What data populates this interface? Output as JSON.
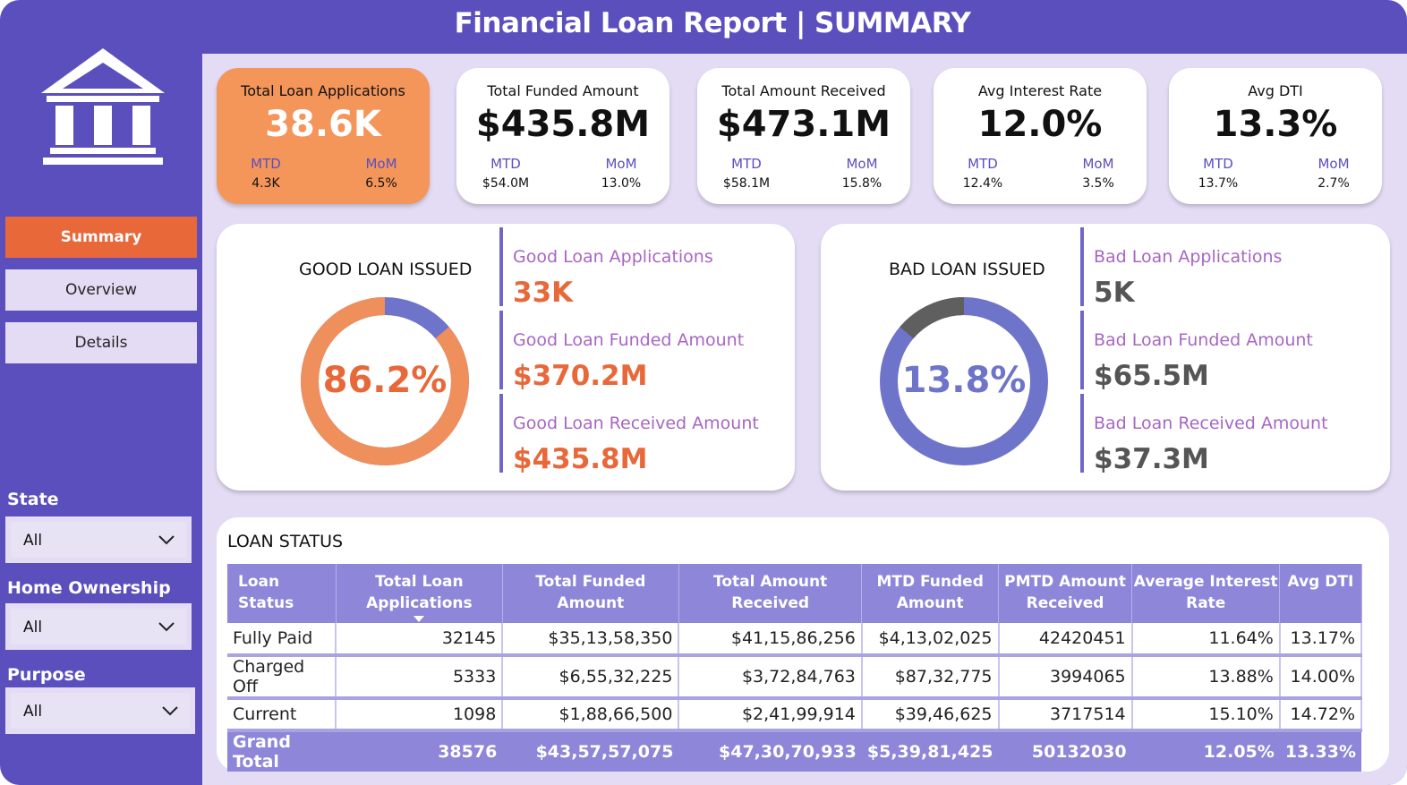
{
  "header": {
    "title": "Financial Loan Report | SUMMARY"
  },
  "sidebar": {
    "nav": [
      {
        "label": "Summary",
        "active": true
      },
      {
        "label": "Overview",
        "active": false
      },
      {
        "label": "Details",
        "active": false
      }
    ],
    "filters": [
      {
        "label": "State",
        "value": "All"
      },
      {
        "label": "Home Ownership",
        "value": "All"
      },
      {
        "label": "Purpose",
        "value": "All"
      }
    ]
  },
  "kpis": [
    {
      "title": "Total Loan Applications",
      "value": "38.6K",
      "mtd_label": "MTD",
      "mtd": "4.3K",
      "mom_label": "MoM",
      "mom": "6.5%"
    },
    {
      "title": "Total Funded Amount",
      "value": "$435.8M",
      "mtd_label": "MTD",
      "mtd": "$54.0M",
      "mom_label": "MoM",
      "mom": "13.0%"
    },
    {
      "title": "Total Amount Received",
      "value": "$473.1M",
      "mtd_label": "MTD",
      "mtd": "$58.1M",
      "mom_label": "MoM",
      "mom": "15.8%"
    },
    {
      "title": "Avg Interest Rate",
      "value": "12.0%",
      "mtd_label": "MTD",
      "mtd": "12.4%",
      "mom_label": "MoM",
      "mom": "3.5%"
    },
    {
      "title": "Avg DTI",
      "value": "13.3%",
      "mtd_label": "MTD",
      "mtd": "13.7%",
      "mom_label": "MoM",
      "mom": "2.7%"
    }
  ],
  "good_loan": {
    "title": "GOOD LOAN ISSUED",
    "percent_label": "86.2%",
    "percent": 0.862,
    "metrics": [
      {
        "label": "Good Loan Applications",
        "value": "33K"
      },
      {
        "label": "Good Loan Funded Amount",
        "value": "$370.2M"
      },
      {
        "label": "Good Loan Received Amount",
        "value": "$435.8M"
      }
    ]
  },
  "bad_loan": {
    "title": "BAD LOAN ISSUED",
    "percent_label": "13.8%",
    "percent": 0.138,
    "metrics": [
      {
        "label": "Bad Loan Applications",
        "value": "5K"
      },
      {
        "label": "Bad Loan Funded Amount",
        "value": "$65.5M"
      },
      {
        "label": "Bad Loan Received Amount",
        "value": "$37.3M"
      }
    ]
  },
  "loan_status": {
    "title": "LOAN STATUS",
    "columns": [
      "Loan Status",
      "Total Loan Applications",
      "Total Funded Amount",
      "Total Amount Received",
      "MTD Funded Amount",
      "PMTD Amount Received",
      "Average Interest Rate",
      "Avg DTI"
    ],
    "rows": [
      [
        "Fully Paid",
        "32145",
        "$35,13,58,350",
        "$41,15,86,256",
        "$4,13,02,025",
        "42420451",
        "11.64%",
        "13.17%"
      ],
      [
        "Charged Off",
        "5333",
        "$6,55,32,225",
        "$3,72,84,763",
        "$87,32,775",
        "3994065",
        "13.88%",
        "14.00%"
      ],
      [
        "Current",
        "1098",
        "$1,88,66,500",
        "$2,41,99,914",
        "$39,46,625",
        "3717514",
        "15.10%",
        "14.72%"
      ]
    ],
    "total": [
      "Grand Total",
      "38576",
      "$43,57,57,075",
      "$47,30,70,933",
      "$5,39,81,425",
      "50132030",
      "12.05%",
      "13.33%"
    ]
  },
  "colors": {
    "brand_purple": "#5b4fbe",
    "accent_orange": "#e8683a",
    "good_donut": "#ef8f5c",
    "good_remainder": "#6e74c9",
    "bad_donut": "#6e74c9",
    "bad_segment": "#5f5f5f",
    "metric_label": "#a766c4"
  },
  "icons": {
    "logo": "bank-building-icon",
    "dropdown": "chevron-down-icon"
  }
}
